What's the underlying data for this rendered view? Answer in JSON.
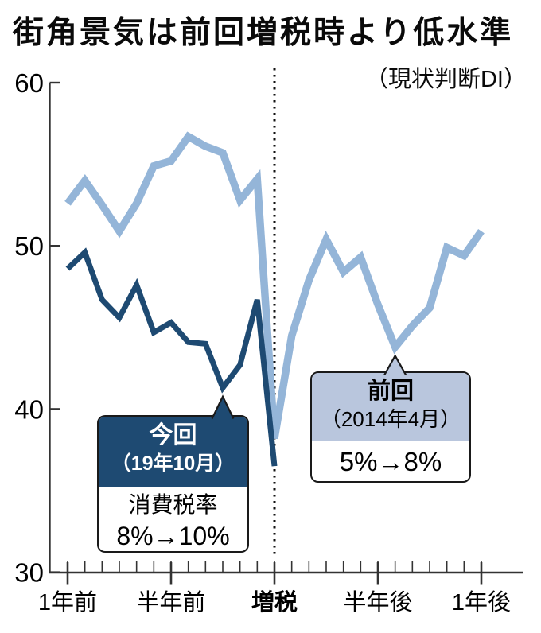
{
  "chart_data": {
    "type": "line",
    "title": "街角景気は前回増税時より低水準",
    "subtitle": "（現状判断DI）",
    "ylim": [
      30,
      60
    ],
    "y_ticks": [
      60,
      50,
      40,
      30
    ],
    "months_span": 25,
    "x_tick_labels": [
      {
        "label": "1年前",
        "month": 0,
        "bold": false
      },
      {
        "label": "半年前",
        "month": 6,
        "bold": false
      },
      {
        "label": "増税",
        "month": 12,
        "bold": true
      },
      {
        "label": "半年後",
        "month": 18,
        "bold": false
      },
      {
        "label": "1年後",
        "month": 24,
        "bold": false
      }
    ],
    "event_marker": {
      "month": 12,
      "label": "増税",
      "style": "dotted-vertical-line"
    },
    "grid": false,
    "legend_position": "callout-annotations",
    "series": [
      {
        "name": "前回（2014年4月） 5%→8%",
        "color": "#94b5d8",
        "start_month": 0,
        "values": [
          52.6,
          54.0,
          52.5,
          50.9,
          52.6,
          54.9,
          55.2,
          56.7,
          56.1,
          55.7,
          52.8,
          54.1,
          38.2,
          44.5,
          47.9,
          50.4,
          48.4,
          49.3,
          46.4,
          43.8,
          45.1,
          46.2,
          49.9,
          49.4,
          50.9
        ]
      },
      {
        "name": "今回（19年10月） 8%→10%",
        "color": "#1e4a72",
        "start_month": 0,
        "values": [
          48.6,
          49.6,
          46.7,
          45.6,
          47.6,
          44.7,
          45.3,
          44.1,
          44.0,
          41.3,
          42.7,
          46.7,
          36.5
        ]
      }
    ]
  },
  "annotations": {
    "current": {
      "title": "今回",
      "date": "（19年10月）",
      "body_line1": "消費税率",
      "body_line2": "8%→10%",
      "header_bg": "#1e4a72",
      "header_text_color": "#ffffff",
      "series_index": 1,
      "points_to_month": 9
    },
    "previous": {
      "title": "前回",
      "date": "（2014年4月）",
      "body_line1": "5%→8%",
      "header_bg": "#b9c6dd",
      "header_text_color": "#000000",
      "series_index": 0,
      "points_to_month": 19
    }
  },
  "colors": {
    "axis": "#333333",
    "tick_text": "#000000",
    "event_line": "#111111",
    "background": "#ffffff"
  }
}
